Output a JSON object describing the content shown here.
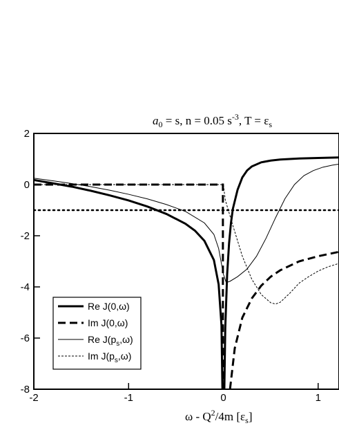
{
  "chart_data": {
    "type": "line",
    "title": {
      "a_sym": "a",
      "a_sub": "0",
      "a_rest": " = s, n = 0.05 s",
      "n_sup": "-3",
      "t_part": ",  T = ε",
      "t_sub": "s"
    },
    "xlabel": {
      "main": "ω - Q",
      "sup": "2",
      "mid": "/4m [ε",
      "sub": "s",
      "end": "]"
    },
    "ylabel": "",
    "xlim": [
      -2,
      1.22
    ],
    "ylim": [
      -8,
      2
    ],
    "x_ticks": [
      -2,
      -1,
      0,
      1
    ],
    "x_tick_labels": [
      "-2",
      "-1",
      "0",
      "1"
    ],
    "y_ticks": [
      2,
      0,
      -2,
      -4,
      -6,
      -8
    ],
    "y_tick_labels": [
      "2",
      "0",
      "-2",
      "-4",
      "-6",
      "-8"
    ],
    "legend_position": "bottom-left",
    "series": [
      {
        "name": "Re J(0,ω)",
        "style": "thick-solid",
        "points": [
          [
            -2,
            0.18
          ],
          [
            -1.8,
            0.05
          ],
          [
            -1.6,
            -0.08
          ],
          [
            -1.4,
            -0.24
          ],
          [
            -1.2,
            -0.42
          ],
          [
            -1.0,
            -0.62
          ],
          [
            -0.8,
            -0.86
          ],
          [
            -0.6,
            -1.15
          ],
          [
            -0.4,
            -1.53
          ],
          [
            -0.3,
            -1.8
          ],
          [
            -0.2,
            -2.2
          ],
          [
            -0.1,
            -2.95
          ],
          [
            -0.05,
            -3.9
          ],
          [
            -0.02,
            -5.5
          ],
          [
            -0.01,
            -8.0
          ]
        ]
      },
      {
        "name": "Re J(0,ω) (ω>0 branch)",
        "style": "thick-solid",
        "points": [
          [
            0.01,
            -8.0
          ],
          [
            0.02,
            -5.6
          ],
          [
            0.04,
            -3.5
          ],
          [
            0.06,
            -2.3
          ],
          [
            0.08,
            -1.5
          ],
          [
            0.1,
            -0.95
          ],
          [
            0.15,
            -0.2
          ],
          [
            0.2,
            0.28
          ],
          [
            0.25,
            0.55
          ],
          [
            0.3,
            0.71
          ],
          [
            0.4,
            0.87
          ],
          [
            0.5,
            0.94
          ],
          [
            0.6,
            0.98
          ],
          [
            0.8,
            1.02
          ],
          [
            1.0,
            1.04
          ],
          [
            1.22,
            1.06
          ]
        ]
      },
      {
        "name": "Im J(0,ω)",
        "style": "thick-dashed",
        "points": [
          [
            -2,
            0.0
          ],
          [
            -0.005,
            0.0
          ],
          [
            -0.005,
            -8.0
          ]
        ]
      },
      {
        "name": "Im J(0,ω) (ω>0 branch)",
        "style": "thick-dashed",
        "points": [
          [
            0.07,
            -8.0
          ],
          [
            0.12,
            -6.4
          ],
          [
            0.2,
            -5.2
          ],
          [
            0.3,
            -4.45
          ],
          [
            0.4,
            -3.95
          ],
          [
            0.5,
            -3.6
          ],
          [
            0.6,
            -3.35
          ],
          [
            0.8,
            -3.0
          ],
          [
            1.0,
            -2.8
          ],
          [
            1.22,
            -2.63
          ]
        ]
      },
      {
        "name": "Re J(p_s,ω)",
        "style": "thin-solid",
        "points": [
          [
            -2,
            0.25
          ],
          [
            -1.8,
            0.15
          ],
          [
            -1.6,
            0.04
          ],
          [
            -1.4,
            -0.08
          ],
          [
            -1.2,
            -0.22
          ],
          [
            -1.0,
            -0.38
          ],
          [
            -0.8,
            -0.56
          ],
          [
            -0.6,
            -0.78
          ],
          [
            -0.4,
            -1.05
          ],
          [
            -0.2,
            -1.5
          ],
          [
            -0.1,
            -1.95
          ],
          [
            -0.05,
            -2.5
          ],
          [
            0.0,
            -3.5
          ],
          [
            0.03,
            -3.83
          ],
          [
            0.07,
            -3.78
          ],
          [
            0.15,
            -3.6
          ],
          [
            0.25,
            -3.3
          ],
          [
            0.35,
            -2.8
          ],
          [
            0.45,
            -2.1
          ],
          [
            0.55,
            -1.3
          ],
          [
            0.65,
            -0.55
          ],
          [
            0.75,
            0.0
          ],
          [
            0.85,
            0.35
          ],
          [
            0.95,
            0.55
          ],
          [
            1.05,
            0.68
          ],
          [
            1.15,
            0.76
          ],
          [
            1.22,
            0.8
          ]
        ]
      },
      {
        "name": "Im J(p_s,ω)",
        "style": "thin-dashed",
        "points": [
          [
            -2,
            0.0
          ],
          [
            0.0,
            0.0
          ],
          [
            0.02,
            -0.6
          ],
          [
            0.06,
            -1.1
          ],
          [
            0.1,
            -1.6
          ],
          [
            0.15,
            -2.2
          ],
          [
            0.2,
            -2.8
          ],
          [
            0.3,
            -3.7
          ],
          [
            0.4,
            -4.3
          ],
          [
            0.5,
            -4.62
          ],
          [
            0.55,
            -4.67
          ],
          [
            0.6,
            -4.6
          ],
          [
            0.7,
            -4.25
          ],
          [
            0.8,
            -3.85
          ],
          [
            0.9,
            -3.6
          ],
          [
            1.0,
            -3.38
          ],
          [
            1.1,
            -3.22
          ],
          [
            1.22,
            -3.08
          ]
        ]
      },
      {
        "name": "reference -1",
        "style": "dotted",
        "points": [
          [
            -2,
            -1.0
          ],
          [
            1.22,
            -1.0
          ]
        ]
      }
    ],
    "legend": [
      {
        "label": "Re J(0,ω)",
        "style": "thick-solid"
      },
      {
        "label": "Im J(0,ω)",
        "style": "thick-dashed"
      },
      {
        "label_main": "Re J(p",
        "label_sub": "s",
        "label_end": ",ω)",
        "style": "thin-solid"
      },
      {
        "label_main": "Im J(p",
        "label_sub": "s",
        "label_end": ",ω)",
        "style": "thin-dashed"
      }
    ]
  }
}
